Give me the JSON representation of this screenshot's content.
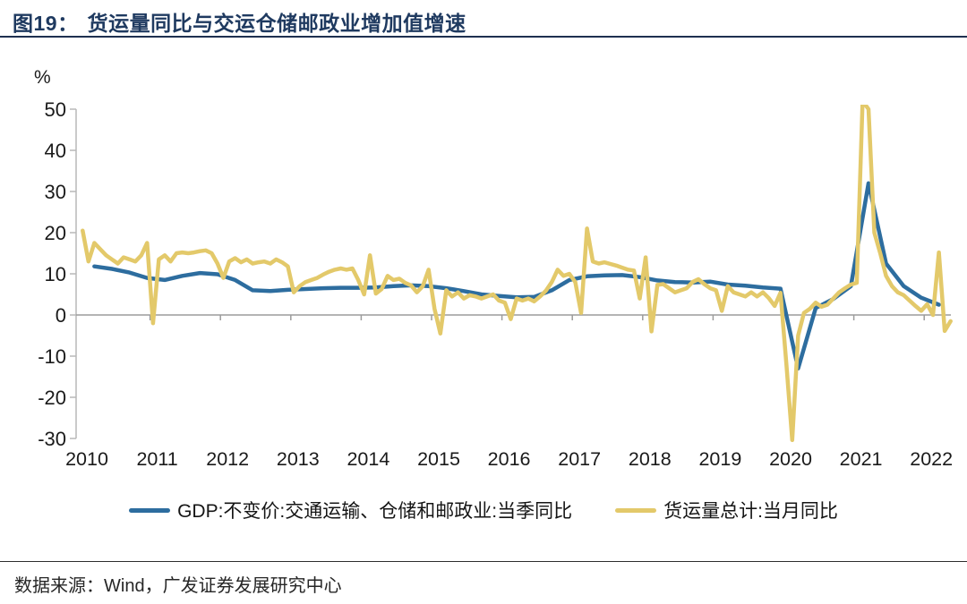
{
  "header": {
    "figure_label": "图19：",
    "title": "货运量同比与交运仓储邮政业增加值增速"
  },
  "footer": {
    "source": "数据来源：Wind，广发证券发展研究中心"
  },
  "colors": {
    "accent_navy": "#1f3a60",
    "gdp_line": "#2d6d9f",
    "freight_line": "#e3c96a",
    "axis_gray": "#b8b8b8",
    "zero_line": "#9c9c9c",
    "tick_text": "#1a1a1a"
  },
  "chart_data": {
    "type": "line",
    "title": "货运量同比与交运仓储邮政业增加值增速",
    "y_unit": "%",
    "ylim": [
      -30,
      50
    ],
    "yticks": [
      50,
      40,
      30,
      20,
      10,
      0,
      -10,
      -20,
      -30
    ],
    "x_year_ticks": [
      2010,
      2011,
      2012,
      2013,
      2014,
      2015,
      2016,
      2017,
      2018,
      2019,
      2020,
      2021,
      2022
    ],
    "x_range": [
      2010.0,
      2022.45
    ],
    "grid": false,
    "legend_position": "bottom",
    "series": [
      {
        "name": "GDP:不变价:交通运输、仓储和邮政业:当季同比",
        "color": "#2d6d9f",
        "freq": "quarterly",
        "start_year": 2010,
        "values": [
          11.8,
          11.2,
          10.3,
          9.0,
          8.5,
          9.5,
          10.2,
          9.9,
          8.5,
          6.0,
          5.8,
          6.1,
          6.3,
          6.5,
          6.6,
          6.6,
          6.7,
          7.0,
          7.2,
          7.0,
          6.5,
          5.8,
          5.0,
          4.6,
          4.3,
          4.4,
          6.0,
          8.5,
          9.4,
          9.6,
          9.7,
          9.2,
          8.4,
          8.0,
          7.9,
          8.1,
          7.4,
          7.1,
          6.7,
          6.4,
          -13.0,
          1.7,
          3.9,
          7.0,
          32.0,
          12.5,
          7.0,
          4.2,
          2.5
        ]
      },
      {
        "name": "货运量总计:当月同比",
        "color": "#e3c96a",
        "freq": "monthly",
        "start_year": 2010,
        "values": [
          20.5,
          13.0,
          17.5,
          16.0,
          14.5,
          13.5,
          12.5,
          14.0,
          13.5,
          13.0,
          14.5,
          17.5,
          -2.0,
          13.5,
          14.5,
          13.0,
          15.0,
          15.2,
          15.0,
          15.2,
          15.5,
          15.7,
          15.0,
          12.5,
          9.0,
          13.0,
          13.8,
          12.8,
          13.5,
          12.5,
          12.8,
          13.0,
          12.5,
          13.5,
          12.8,
          11.8,
          5.5,
          7.0,
          8.0,
          8.5,
          9.0,
          9.8,
          10.5,
          11.0,
          11.3,
          11.0,
          11.3,
          8.5,
          5.0,
          14.5,
          5.2,
          6.3,
          9.5,
          8.5,
          8.8,
          7.8,
          7.2,
          5.5,
          7.0,
          11.0,
          1.5,
          -4.5,
          6.0,
          4.5,
          5.5,
          4.0,
          4.8,
          4.5,
          4.0,
          4.5,
          5.0,
          3.5,
          3.0,
          -1.0,
          4.0,
          3.5,
          4.0,
          3.3,
          4.5,
          5.9,
          8.0,
          11.0,
          9.5,
          10.0,
          8.0,
          0.5,
          21.0,
          13.0,
          12.5,
          12.8,
          12.4,
          12.0,
          11.5,
          11.0,
          10.8,
          4.0,
          14.0,
          -4.0,
          7.3,
          7.5,
          6.5,
          5.5,
          6.0,
          6.5,
          8.0,
          8.7,
          7.5,
          6.5,
          6.0,
          1.0,
          7.0,
          5.5,
          5.0,
          4.5,
          5.5,
          4.5,
          5.5,
          4.1,
          2.2,
          5.4,
          -12.0,
          -30.4,
          -5.0,
          0.5,
          1.5,
          3.0,
          2.0,
          2.5,
          4.0,
          5.5,
          6.5,
          7.4,
          7.8,
          52.0,
          50.0,
          20.0,
          15.0,
          9.5,
          7.0,
          5.5,
          4.8,
          3.5,
          2.2,
          1.0,
          2.6,
          0.0,
          15.2,
          -3.9,
          -1.5
        ]
      }
    ]
  }
}
